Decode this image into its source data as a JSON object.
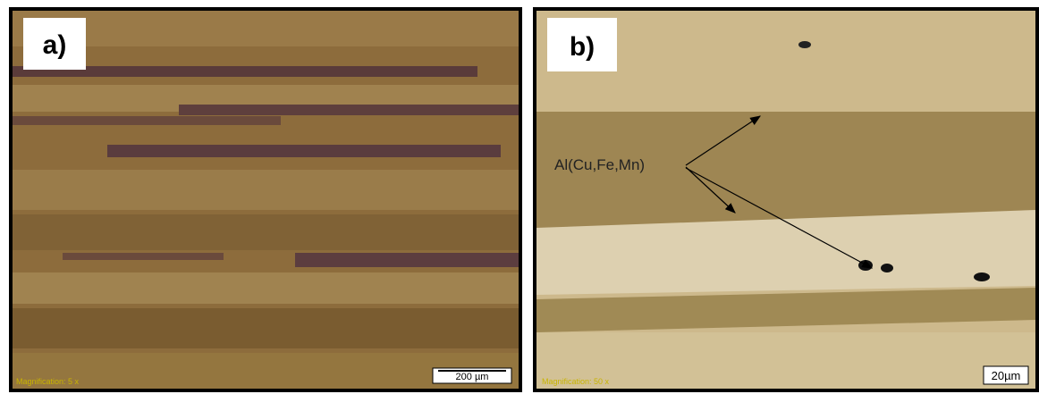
{
  "panels": [
    {
      "label": "a)",
      "scale_bar": "200 µm",
      "magnification": "Magnification: 5 x"
    },
    {
      "label": "b)",
      "scale_bar": "20µm",
      "annotation": "Al(Cu,Fe,Mn)",
      "magnification": "Magnification: 50 x"
    }
  ]
}
